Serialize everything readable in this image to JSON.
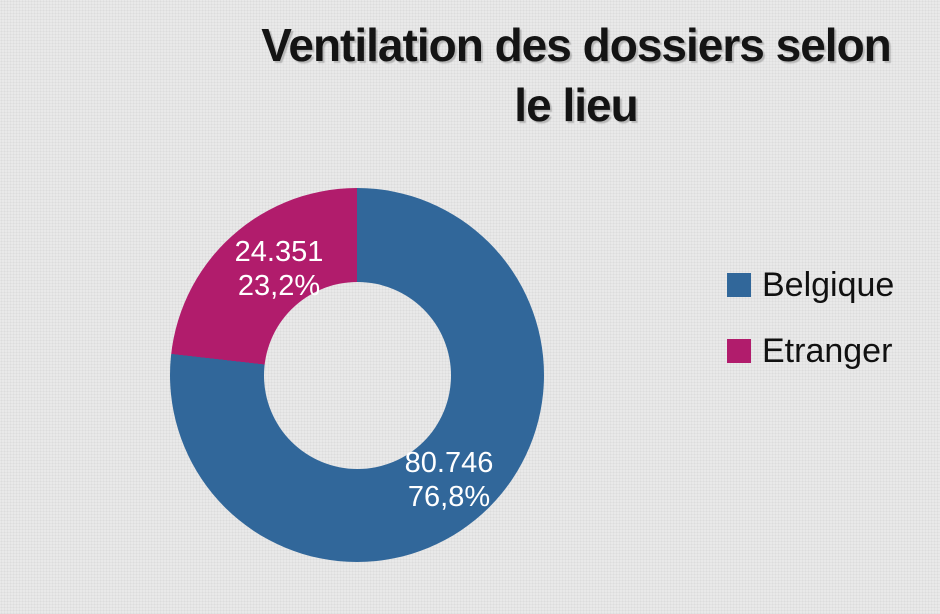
{
  "title": {
    "line1": "Ventilation des dossiers selon",
    "line2": "le lieu"
  },
  "chart_data": {
    "type": "pie",
    "subtype": "donut",
    "title": "Ventilation des dossiers selon le lieu",
    "donut_hole_ratio": 0.5,
    "start_angle_deg": 0,
    "direction": "clockwise",
    "legend_position": "right",
    "data_label_color": "#ffffff",
    "background_color": "#e9e9e9",
    "series": [
      {
        "name": "Belgique",
        "value": 80746,
        "percent": 76.8,
        "color": "#31679A",
        "value_label": "80.746",
        "percent_label": "76,8%"
      },
      {
        "name": "Etranger",
        "value": 24351,
        "percent": 23.2,
        "color": "#B11C6C",
        "value_label": "24.351",
        "percent_label": "23,2%"
      }
    ]
  }
}
